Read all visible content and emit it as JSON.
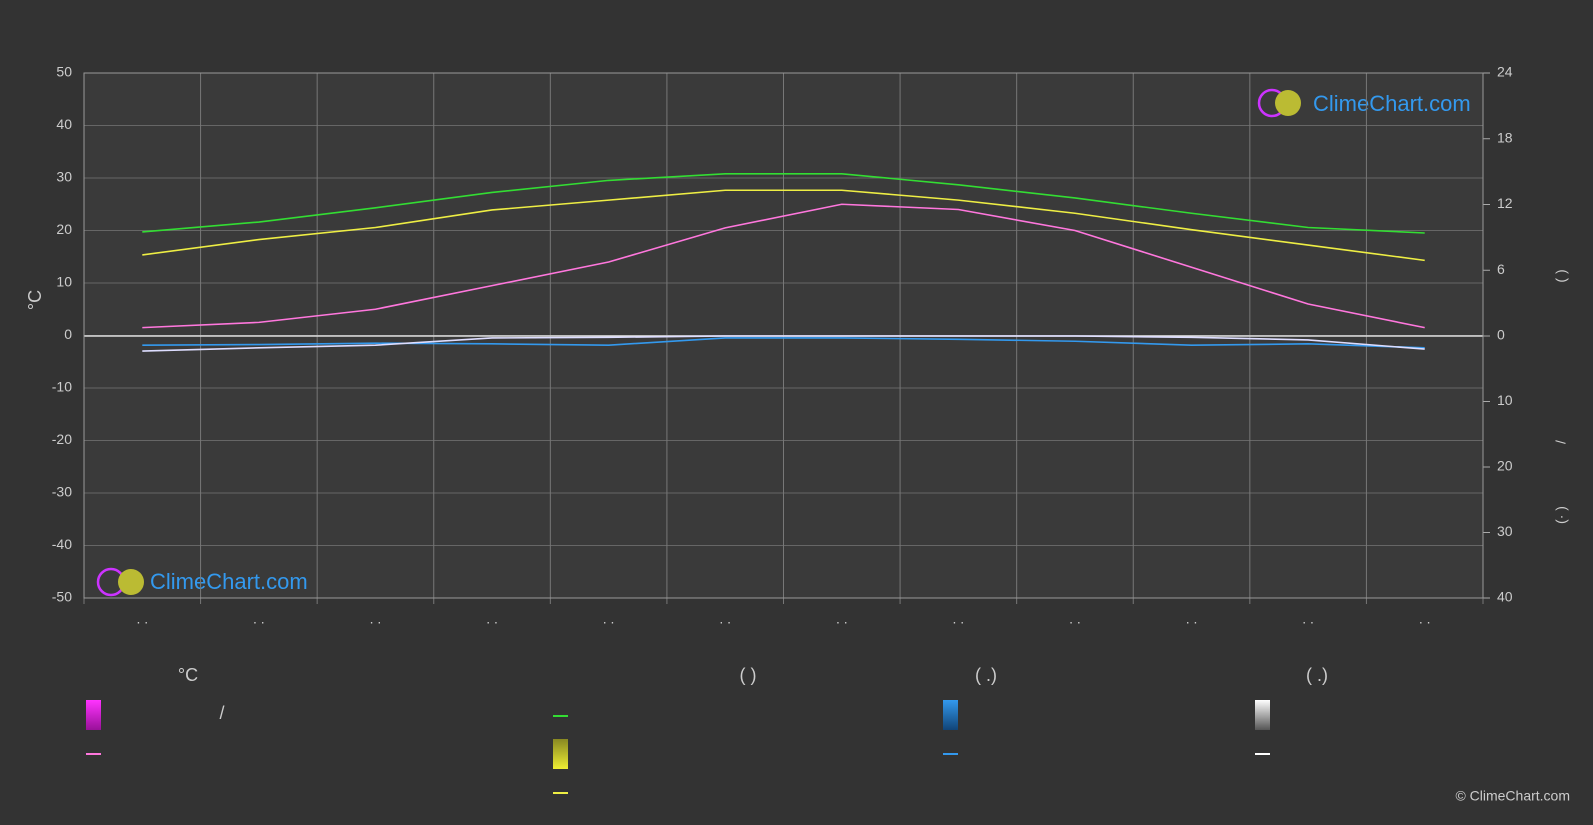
{
  "chart_data": {
    "type": "line",
    "y_label": "°C",
    "y2_labels": [
      "(      )",
      "/",
      "(·    )"
    ],
    "categories": [
      ". .",
      ". .",
      ". .",
      ". .",
      ". .",
      ". .",
      ". .",
      ". .",
      ". .",
      ". .",
      ". .",
      ". ."
    ],
    "ylim": [
      -50,
      50
    ],
    "yticks": [
      -50,
      -40,
      -30,
      -20,
      -10,
      0,
      10,
      20,
      30,
      40,
      50
    ],
    "y2lim": [
      0,
      24
    ],
    "y2ticks": [
      0,
      6,
      12,
      18,
      24
    ],
    "y3lim": [
      0,
      40
    ],
    "y3ticks": [
      10,
      20,
      30,
      40
    ],
    "grid": true,
    "series": [
      {
        "color": "#33dd33",
        "axis": "y2",
        "values": [
          9.5,
          10.4,
          11.7,
          13.1,
          14.2,
          14.8,
          14.8,
          13.8,
          12.6,
          11.2,
          9.9,
          9.4
        ]
      },
      {
        "color": "#eeee44",
        "axis": "y2",
        "values": [
          7.4,
          8.8,
          9.9,
          11.5,
          12.4,
          13.3,
          13.3,
          12.4,
          11.2,
          9.7,
          8.3,
          6.9
        ]
      },
      {
        "color": "#ff77dd",
        "values": [
          1.5,
          2.5,
          5,
          9.5,
          14,
          20.5,
          25,
          24,
          20,
          13,
          6,
          1.5
        ]
      },
      {
        "color": "#3399ee",
        "axis": "y3",
        "values": [
          1.4,
          1.3,
          1.1,
          1.2,
          1.4,
          0.3,
          0.3,
          0.5,
          0.8,
          1.4,
          1.2,
          1.8
        ]
      },
      {
        "color": "#ddddff",
        "axis": "y3",
        "values": [
          2.3,
          1.8,
          1.4,
          0.3,
          0.2,
          0,
          0,
          0,
          0,
          0.2,
          0.6,
          2.0
        ]
      }
    ]
  },
  "legend": {
    "headers": [
      "°C",
      "(           )",
      "(    .)",
      "(    .)"
    ],
    "slash": "/"
  },
  "logo_text": "ClimeChart.com",
  "copyright": "© ClimeChart.com"
}
